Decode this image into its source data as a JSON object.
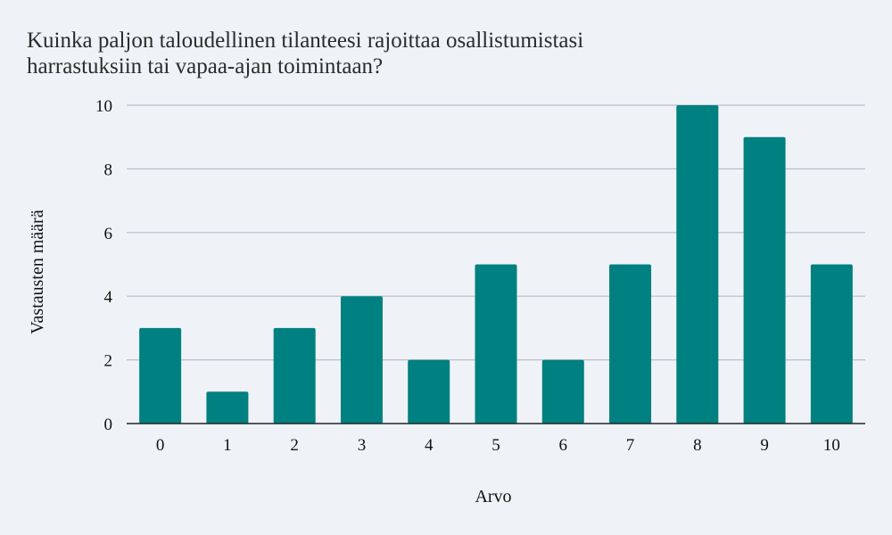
{
  "chart_data": {
    "type": "bar",
    "title_lines": [
      "Kuinka paljon taloudellinen tilanteesi rajoittaa osallistumistasi",
      "harrastuksiin tai vapaa-ajan toimintaan?"
    ],
    "xlabel": "Arvo",
    "ylabel": "Vastausten määrä",
    "categories": [
      "0",
      "1",
      "2",
      "3",
      "4",
      "5",
      "6",
      "7",
      "8",
      "9",
      "10"
    ],
    "values": [
      3,
      1,
      3,
      4,
      2,
      5,
      2,
      5,
      10,
      9,
      5
    ],
    "ylim": [
      0,
      10
    ],
    "yticks": [
      "0",
      "2",
      "4",
      "6",
      "8",
      "10"
    ],
    "grid": true,
    "legend": "none",
    "bar_color": "#008080",
    "background_color": "#eff3f8"
  }
}
